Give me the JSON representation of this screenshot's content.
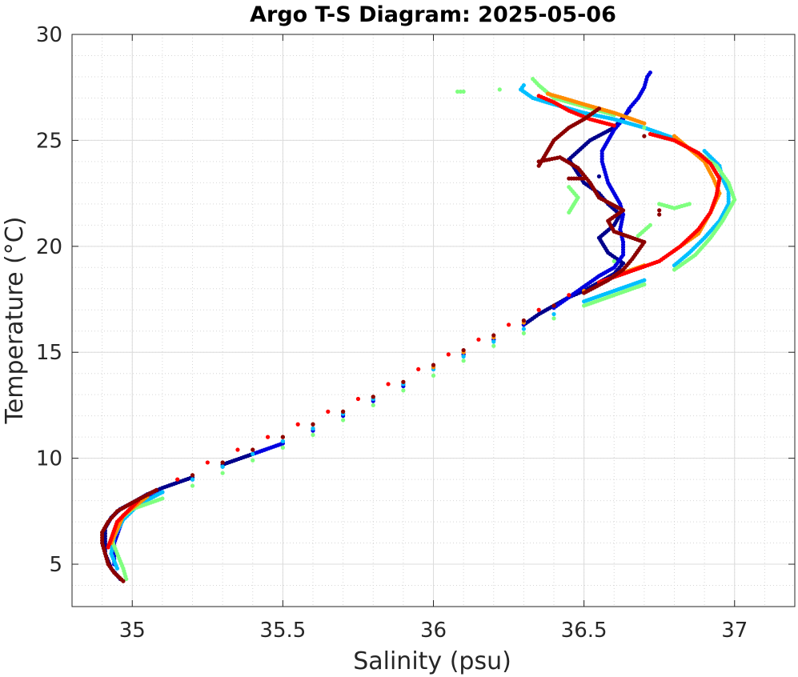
{
  "chart_data": {
    "type": "scatter",
    "title": "Argo T-S Diagram: 2025-05-06",
    "xlabel": "Salinity (psu)",
    "ylabel": "Temperature (°C)",
    "xlim": [
      34.8,
      37.2
    ],
    "ylim": [
      3,
      30
    ],
    "xticks": [
      35,
      35.5,
      36,
      36.5,
      37
    ],
    "xtick_labels": [
      "35",
      "35.5",
      "36",
      "36.5",
      "37"
    ],
    "yticks": [
      5,
      10,
      15,
      20,
      25,
      30
    ],
    "ytick_labels": [
      "5",
      "10",
      "15",
      "20",
      "25",
      "30"
    ],
    "grid": true,
    "minor_grid": true,
    "legend": "none",
    "series": [
      {
        "color": "#00008b",
        "points": [
          [
            34.96,
            4.3
          ],
          [
            34.93,
            4.8
          ],
          [
            34.91,
            5.5
          ],
          [
            34.91,
            6.2
          ],
          [
            34.91,
            6.7
          ],
          [
            34.93,
            7.2
          ],
          [
            34.96,
            7.6
          ],
          [
            35.0,
            7.9
          ],
          [
            35.05,
            8.3
          ],
          [
            35.1,
            8.6
          ],
          [
            35.2,
            9.1
          ],
          [
            35.3,
            9.7
          ],
          [
            35.4,
            10.2
          ],
          [
            35.5,
            10.8
          ],
          [
            35.6,
            11.4
          ],
          [
            35.7,
            12.1
          ],
          [
            35.8,
            12.8
          ],
          [
            35.9,
            13.5
          ],
          [
            36.0,
            14.3
          ],
          [
            36.1,
            14.9
          ],
          [
            36.2,
            15.6
          ],
          [
            36.3,
            16.3
          ],
          [
            36.35,
            16.8
          ],
          [
            36.4,
            17.2
          ],
          [
            36.45,
            17.6
          ],
          [
            36.5,
            17.9
          ],
          [
            36.55,
            18.3
          ],
          [
            36.6,
            18.7
          ],
          [
            36.63,
            19.2
          ],
          [
            36.58,
            19.7
          ],
          [
            36.55,
            20.4
          ],
          [
            36.6,
            21.0
          ],
          [
            36.62,
            21.5
          ],
          [
            36.58,
            22.0
          ],
          [
            36.55,
            22.5
          ],
          [
            36.5,
            23.0
          ],
          [
            36.45,
            24.1
          ],
          [
            36.52,
            25.0
          ],
          [
            36.6,
            25.6
          ],
          [
            36.65,
            26.4
          ],
          [
            36.55,
            23.3
          ]
        ]
      },
      {
        "color": "#0000e0",
        "points": [
          [
            34.94,
            5.0
          ],
          [
            34.94,
            6.0
          ],
          [
            34.97,
            7.2
          ],
          [
            35.02,
            7.9
          ],
          [
            35.1,
            8.4
          ],
          [
            35.2,
            9.0
          ],
          [
            35.3,
            9.6
          ],
          [
            35.4,
            10.2
          ],
          [
            35.5,
            10.7
          ],
          [
            35.6,
            11.3
          ],
          [
            35.7,
            12.0
          ],
          [
            35.8,
            12.7
          ],
          [
            35.9,
            13.4
          ],
          [
            36.0,
            14.2
          ],
          [
            36.1,
            14.9
          ],
          [
            36.2,
            15.6
          ],
          [
            36.3,
            16.3
          ],
          [
            36.4,
            17.1
          ],
          [
            36.45,
            17.6
          ],
          [
            36.5,
            18.1
          ],
          [
            36.55,
            18.6
          ],
          [
            36.6,
            19.0
          ],
          [
            36.63,
            19.6
          ],
          [
            36.63,
            20.2
          ],
          [
            36.62,
            20.8
          ],
          [
            36.63,
            21.5
          ],
          [
            36.62,
            22.0
          ],
          [
            36.6,
            22.5
          ],
          [
            36.58,
            23.0
          ],
          [
            36.57,
            23.5
          ],
          [
            36.56,
            24.0
          ],
          [
            36.56,
            24.5
          ],
          [
            36.58,
            25.0
          ],
          [
            36.6,
            25.5
          ],
          [
            36.63,
            26.0
          ],
          [
            36.65,
            26.5
          ],
          [
            36.68,
            27.0
          ],
          [
            36.7,
            27.5
          ],
          [
            36.71,
            28.0
          ],
          [
            36.72,
            28.2
          ]
        ]
      },
      {
        "color": "#00bfff",
        "points": [
          [
            34.95,
            4.8
          ],
          [
            34.93,
            5.5
          ],
          [
            34.94,
            6.3
          ],
          [
            34.97,
            7.1
          ],
          [
            35.02,
            7.8
          ],
          [
            35.1,
            8.4
          ],
          [
            35.2,
            9.0
          ],
          [
            35.3,
            9.6
          ],
          [
            35.4,
            10.2
          ],
          [
            35.5,
            10.8
          ],
          [
            35.6,
            11.4
          ],
          [
            35.7,
            12.1
          ],
          [
            35.8,
            12.8
          ],
          [
            35.9,
            13.5
          ],
          [
            36.0,
            14.2
          ],
          [
            36.1,
            14.8
          ],
          [
            36.2,
            15.5
          ],
          [
            36.3,
            16.1
          ],
          [
            36.4,
            16.8
          ],
          [
            36.5,
            17.4
          ],
          [
            36.6,
            17.9
          ],
          [
            36.7,
            18.4
          ],
          [
            36.8,
            19.1
          ],
          [
            36.85,
            19.7
          ],
          [
            36.9,
            20.4
          ],
          [
            36.95,
            21.2
          ],
          [
            36.98,
            22.0
          ],
          [
            36.98,
            22.6
          ],
          [
            36.96,
            23.2
          ],
          [
            36.95,
            23.8
          ],
          [
            36.9,
            24.5
          ],
          [
            36.8,
            25.1
          ],
          [
            36.7,
            25.6
          ],
          [
            36.6,
            26.0
          ],
          [
            36.5,
            26.3
          ],
          [
            36.4,
            26.7
          ],
          [
            36.33,
            27.0
          ],
          [
            36.29,
            27.4
          ],
          [
            36.3,
            27.6
          ]
        ]
      },
      {
        "color": "#7fff7f",
        "points": [
          [
            34.98,
            4.3
          ],
          [
            34.97,
            4.8
          ],
          [
            34.95,
            5.5
          ],
          [
            34.93,
            6.2
          ],
          [
            34.95,
            7.0
          ],
          [
            35.0,
            7.6
          ],
          [
            35.1,
            8.1
          ],
          [
            35.2,
            8.7
          ],
          [
            35.3,
            9.3
          ],
          [
            35.4,
            9.9
          ],
          [
            35.5,
            10.5
          ],
          [
            35.6,
            11.1
          ],
          [
            35.7,
            11.8
          ],
          [
            35.8,
            12.5
          ],
          [
            35.9,
            13.2
          ],
          [
            36.0,
            13.9
          ],
          [
            36.1,
            14.6
          ],
          [
            36.2,
            15.3
          ],
          [
            36.3,
            15.9
          ],
          [
            36.4,
            16.6
          ],
          [
            36.5,
            17.2
          ],
          [
            36.6,
            17.7
          ],
          [
            36.7,
            18.2
          ],
          [
            36.8,
            18.9
          ],
          [
            36.87,
            19.6
          ],
          [
            36.92,
            20.4
          ],
          [
            36.96,
            21.2
          ],
          [
            37.0,
            22.2
          ],
          [
            36.98,
            23.0
          ],
          [
            36.94,
            23.8
          ],
          [
            36.88,
            24.4
          ],
          [
            36.8,
            25.0
          ],
          [
            36.7,
            25.6
          ],
          [
            36.6,
            26.2
          ],
          [
            36.5,
            26.6
          ],
          [
            36.4,
            27.0
          ],
          [
            36.35,
            27.6
          ],
          [
            36.33,
            27.9
          ],
          [
            36.1,
            27.3
          ],
          [
            36.08,
            27.3
          ],
          [
            36.22,
            27.4
          ],
          [
            36.45,
            21.6
          ],
          [
            36.48,
            22.3
          ],
          [
            36.45,
            22.8
          ],
          [
            36.75,
            22.0
          ],
          [
            36.8,
            21.8
          ],
          [
            36.85,
            22.0
          ],
          [
            36.68,
            20.5
          ],
          [
            36.72,
            21.0
          ],
          [
            36.6,
            19.3
          ]
        ]
      },
      {
        "color": "#ff8c00",
        "points": [
          [
            34.93,
            6.0
          ],
          [
            34.97,
            7.3
          ],
          [
            35.05,
            8.2
          ],
          [
            35.2,
            9.2
          ],
          [
            35.3,
            9.8
          ],
          [
            35.4,
            10.4
          ],
          [
            35.5,
            11.0
          ],
          [
            35.6,
            11.6
          ],
          [
            35.7,
            12.2
          ],
          [
            35.8,
            12.9
          ],
          [
            35.9,
            13.6
          ],
          [
            36.0,
            14.3
          ],
          [
            36.1,
            15.0
          ],
          [
            36.2,
            15.7
          ],
          [
            36.3,
            16.4
          ],
          [
            36.4,
            17.2
          ],
          [
            36.5,
            17.9
          ],
          [
            36.6,
            18.6
          ],
          [
            36.7,
            19.1
          ],
          [
            36.8,
            19.8
          ],
          [
            36.88,
            20.6
          ],
          [
            36.92,
            21.6
          ],
          [
            36.95,
            22.5
          ],
          [
            36.93,
            23.2
          ],
          [
            36.9,
            24.0
          ],
          [
            36.85,
            24.6
          ],
          [
            36.8,
            25.2
          ],
          [
            36.7,
            25.8
          ],
          [
            36.6,
            26.3
          ],
          [
            36.5,
            26.7
          ],
          [
            36.43,
            27.0
          ],
          [
            36.38,
            27.2
          ]
        ]
      },
      {
        "color": "#ff0000",
        "points": [
          [
            34.92,
            5.8
          ],
          [
            34.95,
            7.0
          ],
          [
            35.02,
            8.0
          ],
          [
            35.15,
            9.0
          ],
          [
            35.25,
            9.8
          ],
          [
            35.35,
            10.4
          ],
          [
            35.45,
            11.0
          ],
          [
            35.55,
            11.6
          ],
          [
            35.65,
            12.2
          ],
          [
            35.75,
            12.8
          ],
          [
            35.85,
            13.5
          ],
          [
            35.95,
            14.2
          ],
          [
            36.05,
            14.9
          ],
          [
            36.15,
            15.6
          ],
          [
            36.25,
            16.3
          ],
          [
            36.35,
            17.0
          ],
          [
            36.45,
            17.7
          ],
          [
            36.55,
            18.3
          ],
          [
            36.65,
            18.8
          ],
          [
            36.75,
            19.3
          ],
          [
            36.82,
            20.0
          ],
          [
            36.88,
            20.8
          ],
          [
            36.92,
            21.6
          ],
          [
            36.94,
            22.4
          ],
          [
            36.95,
            23.2
          ],
          [
            36.92,
            23.9
          ],
          [
            36.88,
            24.4
          ],
          [
            36.8,
            25.0
          ],
          [
            36.72,
            25.3
          ],
          [
            36.6,
            25.7
          ],
          [
            36.52,
            26.0
          ],
          [
            36.45,
            26.4
          ],
          [
            36.4,
            26.8
          ],
          [
            36.35,
            27.1
          ]
        ]
      },
      {
        "color": "#8b0000",
        "points": [
          [
            34.97,
            4.2
          ],
          [
            34.94,
            4.6
          ],
          [
            34.92,
            5.0
          ],
          [
            34.91,
            5.5
          ],
          [
            34.9,
            6.0
          ],
          [
            34.9,
            6.5
          ],
          [
            34.92,
            7.0
          ],
          [
            34.95,
            7.5
          ],
          [
            35.0,
            7.9
          ],
          [
            35.08,
            8.5
          ],
          [
            35.2,
            9.2
          ],
          [
            35.3,
            9.8
          ],
          [
            35.4,
            10.4
          ],
          [
            35.5,
            11.0
          ],
          [
            35.6,
            11.6
          ],
          [
            35.7,
            12.2
          ],
          [
            35.8,
            12.9
          ],
          [
            35.9,
            13.6
          ],
          [
            36.0,
            14.4
          ],
          [
            36.1,
            15.1
          ],
          [
            36.2,
            15.8
          ],
          [
            36.3,
            16.5
          ],
          [
            36.4,
            17.2
          ],
          [
            36.5,
            17.8
          ],
          [
            36.58,
            18.4
          ],
          [
            36.63,
            18.9
          ],
          [
            36.66,
            19.4
          ],
          [
            36.68,
            19.8
          ],
          [
            36.7,
            20.2
          ],
          [
            36.6,
            20.7
          ],
          [
            36.58,
            21.2
          ],
          [
            36.63,
            21.7
          ],
          [
            36.55,
            22.3
          ],
          [
            36.52,
            23.0
          ],
          [
            36.48,
            23.7
          ],
          [
            36.42,
            24.2
          ],
          [
            36.35,
            24.0
          ],
          [
            36.35,
            23.8
          ],
          [
            36.4,
            25.0
          ],
          [
            36.45,
            25.6
          ],
          [
            36.5,
            26.0
          ],
          [
            36.55,
            26.5
          ],
          [
            36.75,
            21.5
          ],
          [
            36.75,
            21.7
          ],
          [
            36.7,
            25.2
          ],
          [
            36.45,
            23.2
          ],
          [
            36.5,
            23.2
          ]
        ]
      }
    ]
  }
}
